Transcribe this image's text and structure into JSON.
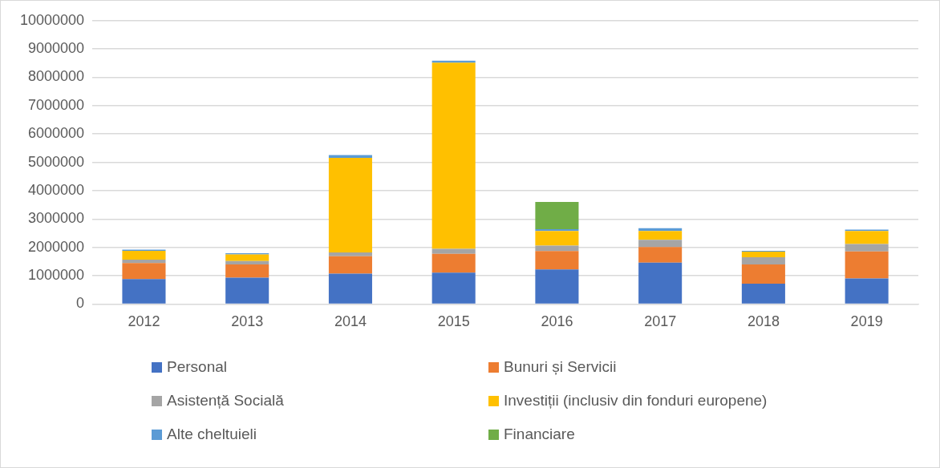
{
  "chart_data": {
    "type": "bar",
    "stacked": true,
    "categories": [
      "2012",
      "2013",
      "2014",
      "2015",
      "2016",
      "2017",
      "2018",
      "2019"
    ],
    "series": [
      {
        "name": "Personal",
        "color": "#4472c4",
        "values": [
          880000,
          930000,
          1070000,
          1110000,
          1220000,
          1460000,
          720000,
          900000
        ]
      },
      {
        "name": "Bunuri și Servicii",
        "color": "#ed7d31",
        "values": [
          570000,
          470000,
          620000,
          660000,
          650000,
          550000,
          680000,
          960000
        ]
      },
      {
        "name": "Asistență Socială",
        "color": "#a5a5a5",
        "values": [
          120000,
          120000,
          130000,
          180000,
          190000,
          260000,
          250000,
          260000
        ]
      },
      {
        "name": "Investiții (inclusiv din fonduri europene)",
        "color": "#ffc000",
        "values": [
          310000,
          230000,
          3340000,
          6570000,
          520000,
          310000,
          200000,
          460000
        ]
      },
      {
        "name": "Alte cheltuieli",
        "color": "#5b9bd5",
        "values": [
          40000,
          40000,
          100000,
          70000,
          60000,
          100000,
          30000,
          50000
        ]
      },
      {
        "name": "Financiare",
        "color": "#70ad47",
        "values": [
          0,
          0,
          0,
          0,
          960000,
          0,
          0,
          0
        ]
      }
    ],
    "ylim": [
      0,
      10000000
    ],
    "yticks": [
      0,
      1000000,
      2000000,
      3000000,
      4000000,
      5000000,
      6000000,
      7000000,
      8000000,
      9000000,
      10000000
    ],
    "grid": "y",
    "legend": "bottom"
  }
}
